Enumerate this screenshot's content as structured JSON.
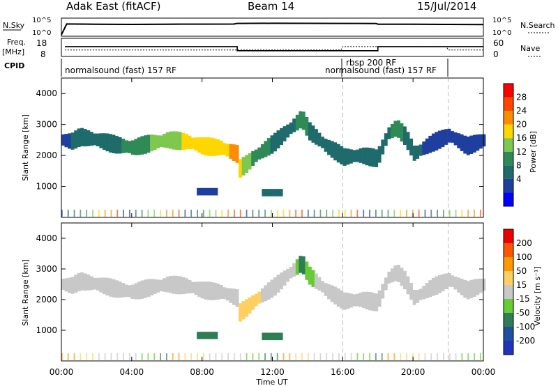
{
  "header": {
    "title": "Adak East (fitACF)",
    "beam": "Beam 14",
    "date": "15/Jul/2014"
  },
  "noise_panel": {
    "left_label": "N.Sky",
    "right_label": "N.Search",
    "left_ticks": [
      "10^5",
      "10^0"
    ],
    "right_ticks": [
      "10^5",
      "10^0"
    ]
  },
  "freq_panel": {
    "left_label_1": "Freq.",
    "left_label_2": "[MHz]",
    "right_label": "Nave",
    "left_ticks": [
      "18",
      "8"
    ],
    "right_ticks": [
      "60",
      "0"
    ]
  },
  "cpid_panel": {
    "label": "CPID",
    "segments": [
      {
        "text": "normalsound (fast) 157 RF"
      },
      {
        "text": "rbsp 200 RF"
      },
      {
        "text": "normalsound (fast) 157 RF"
      }
    ]
  },
  "power_panel": {
    "colorbar_label": "Power [dB]",
    "colorbar_ticks": [
      "28",
      "24",
      "20",
      "16",
      "12",
      "8",
      "4"
    ],
    "colors": [
      "#0000ff",
      "#1f3fa0",
      "#1f6b6b",
      "#2e8b57",
      "#7ec850",
      "#ffd700",
      "#ff8c00",
      "#ff4500",
      "#ff0000"
    ]
  },
  "velocity_panel": {
    "colorbar_label": "Velocity [m s⁻¹]",
    "colorbar_ticks": [
      "200",
      "100",
      "50",
      "15",
      "-15",
      "-50",
      "-100",
      "-200"
    ],
    "colors": [
      "#2233bb",
      "#1f4fa0",
      "#2e7d55",
      "#66cc33",
      "#c8c8c8",
      "#ffd060",
      "#ff9900",
      "#ff5500",
      "#ee0000"
    ]
  },
  "x_axis": {
    "label": "Time UT",
    "ticks": [
      "00:00",
      "04:00",
      "08:00",
      "12:00",
      "16:00",
      "20:00",
      "00:00"
    ]
  },
  "y_axis": {
    "label": "Slant Range [km]",
    "ticks": [
      "4000",
      "3000",
      "2000",
      "1000"
    ]
  },
  "chart_data": [
    {
      "type": "line",
      "title": "N.Sky",
      "x": [
        0.0,
        0.3,
        2,
        4,
        6,
        8,
        9.8,
        10,
        12,
        14,
        16,
        17.9,
        18,
        20,
        22,
        24
      ],
      "series": [
        {
          "name": "N.Sky",
          "values": [
            1,
            3500,
            3000,
            2600,
            3000,
            3200,
            3400,
            5200,
            6000,
            5600,
            5200,
            5000,
            3000,
            2800,
            2600,
            2200
          ]
        },
        {
          "name": "N.Search",
          "values": [
            1,
            2500,
            2300,
            2200,
            2400,
            2500,
            2600,
            4500,
            5000,
            4700,
            4400,
            4200,
            2500,
            2400,
            2300,
            2100
          ]
        }
      ],
      "ylim": [
        1,
        100000
      ],
      "log_scale": true
    },
    {
      "type": "line",
      "title": "Freq. [MHz]",
      "x": [
        0.2,
        10,
        10,
        15.9,
        16,
        18,
        18,
        21.9,
        22,
        24
      ],
      "series": [
        {
          "name": "Freq.",
          "values": [
            13.5,
            13.5,
            10.8,
            10.8,
            10.8,
            10.8,
            13.5,
            13.5,
            13.5,
            13.5
          ]
        },
        {
          "name": "Nave",
          "values": [
            20,
            20,
            20,
            20,
            33,
            33,
            33,
            33,
            20,
            20
          ]
        }
      ],
      "ylim": [
        8,
        18
      ]
    },
    {
      "type": "heatmap",
      "title": "Power [dB]",
      "xlabel": "Time UT",
      "ylabel": "Slant Range [km]",
      "xlim": [
        0,
        24
      ],
      "ylim": [
        0,
        4500
      ],
      "band": {
        "x": [
          0.0,
          0.5,
          1,
          2,
          3,
          4,
          5,
          6,
          7,
          8,
          9,
          9.9,
          10,
          10.5,
          11,
          12,
          13,
          13.6,
          14,
          15,
          16,
          17,
          17.9,
          18.5,
          19,
          19.5,
          20,
          21,
          22,
          23,
          24
        ],
        "center": [
          2500,
          2450,
          2600,
          2500,
          2350,
          2250,
          2400,
          2500,
          2450,
          2300,
          2250,
          2050,
          1550,
          1750,
          2000,
          2400,
          2900,
          3200,
          2800,
          2300,
          1950,
          2000,
          1900,
          2700,
          2900,
          2600,
          2050,
          2400,
          2650,
          2300,
          2500
        ],
        "power": [
          5,
          7,
          9,
          9,
          10,
          12,
          14,
          16,
          18,
          20,
          20,
          22,
          18,
          16,
          12,
          10,
          10,
          12,
          10,
          8,
          8,
          10,
          8,
          10,
          14,
          10,
          8,
          6,
          5,
          6,
          6
        ]
      },
      "patches": [
        {
          "x": 8.3,
          "y": 830,
          "value": 6
        },
        {
          "x": 12.0,
          "y": 800,
          "value": 8
        }
      ]
    },
    {
      "type": "heatmap",
      "title": "Velocity",
      "xlabel": "Time UT",
      "ylabel": "Slant Range [km]",
      "xlim": [
        0,
        24
      ],
      "ylim": [
        0,
        4500
      ],
      "band": {
        "x": [
          0.0,
          0.5,
          1,
          2,
          3,
          4,
          5,
          6,
          7,
          8,
          9,
          9.9,
          10,
          10.5,
          11,
          12,
          13,
          13.6,
          14,
          15,
          16,
          17,
          17.9,
          18.5,
          19,
          19.5,
          20,
          21,
          22,
          23,
          24
        ],
        "center": [
          2500,
          2450,
          2600,
          2500,
          2350,
          2250,
          2400,
          2500,
          2450,
          2300,
          2250,
          2050,
          1550,
          1750,
          2000,
          2400,
          2900,
          3200,
          2800,
          2300,
          1950,
          2000,
          1900,
          2700,
          2900,
          2600,
          2050,
          2400,
          2650,
          2300,
          2500
        ],
        "velocity": [
          0,
          0,
          0,
          0,
          0,
          0,
          0,
          0,
          0,
          -10,
          0,
          0,
          -30,
          -20,
          -20,
          0,
          0,
          40,
          20,
          0,
          0,
          0,
          0,
          0,
          0,
          0,
          0,
          0,
          0,
          0,
          0
        ]
      },
      "patches": [
        {
          "x": 8.3,
          "y": 830,
          "value": 40
        },
        {
          "x": 12.0,
          "y": 800,
          "value": 40
        }
      ]
    }
  ]
}
